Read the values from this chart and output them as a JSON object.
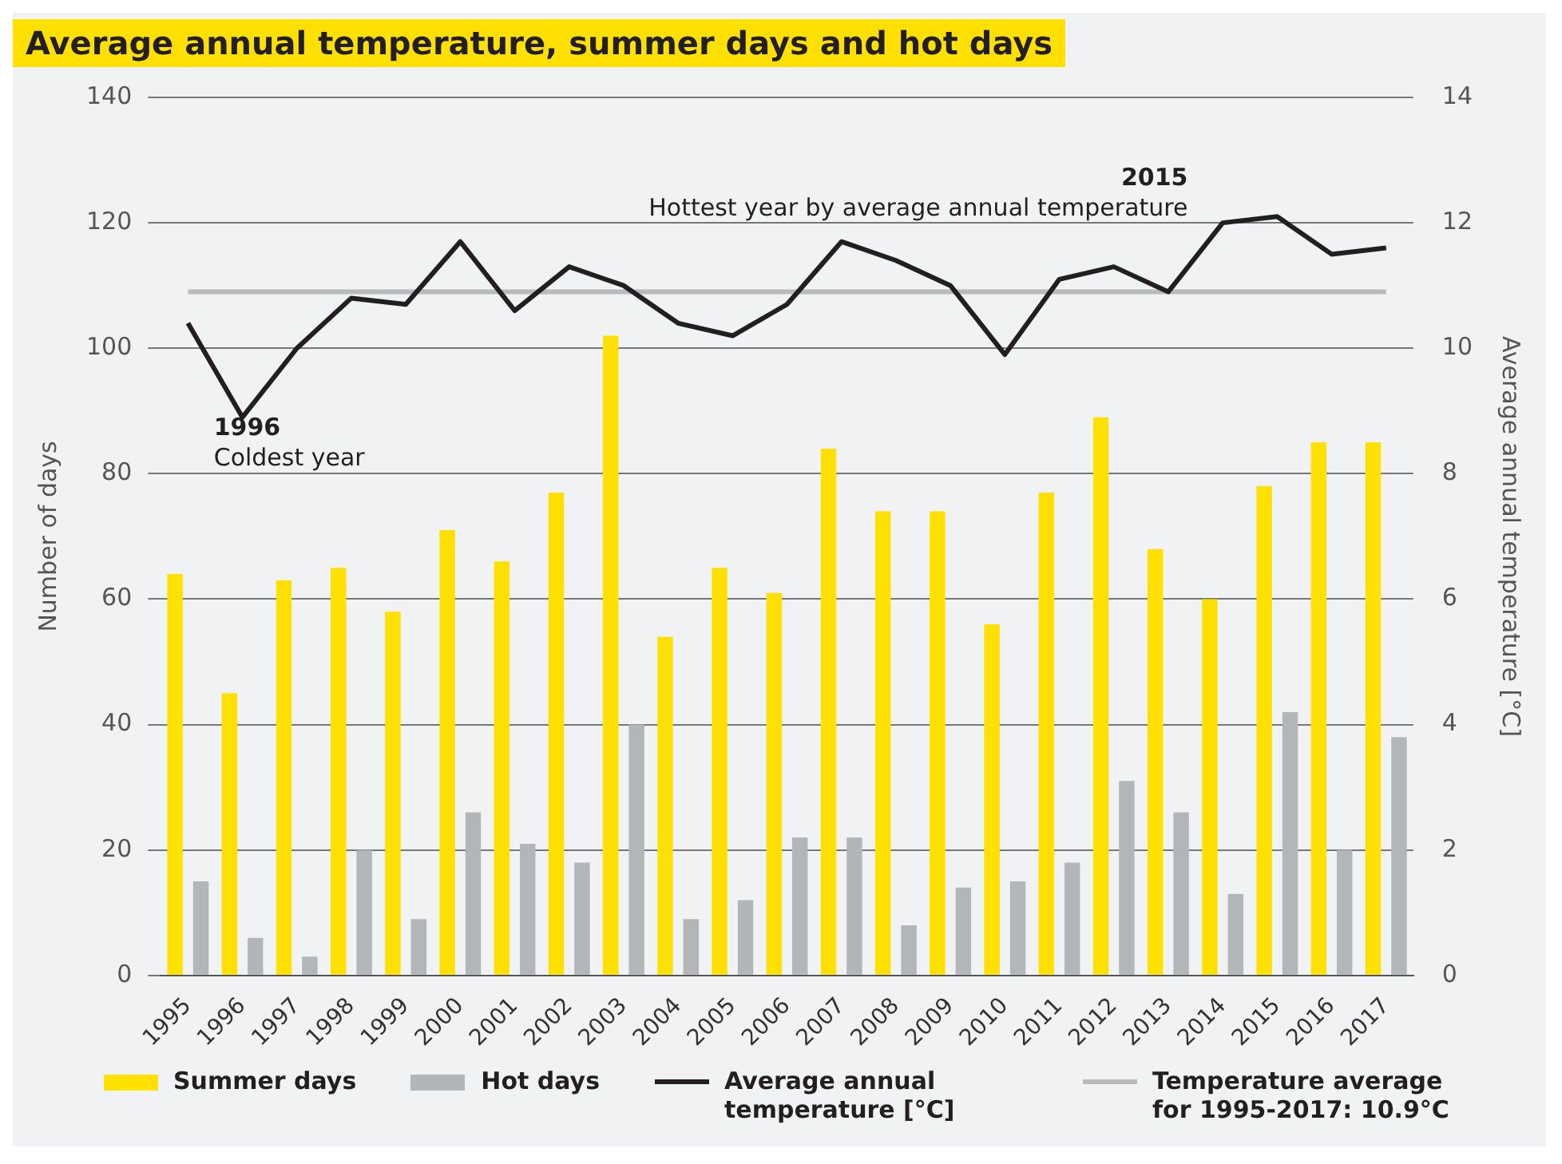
{
  "chart_data": {
    "type": "bar",
    "title": "Average annual temperature, summer days and hot days",
    "ylabel": "Number of days",
    "y2label": "Average annual temperature [°C]",
    "categories": [
      "1995",
      "1996",
      "1997",
      "1998",
      "1999",
      "2000",
      "2001",
      "2002",
      "2003",
      "2004",
      "2005",
      "2006",
      "2007",
      "2008",
      "2009",
      "2010",
      "2011",
      "2012",
      "2013",
      "2014",
      "2015",
      "2016",
      "2017"
    ],
    "series": [
      {
        "name": "Summer days",
        "color": "#ffe000",
        "values": [
          64,
          45,
          63,
          65,
          58,
          71,
          66,
          77,
          102,
          54,
          65,
          61,
          84,
          74,
          74,
          56,
          77,
          89,
          68,
          60,
          78,
          85,
          85
        ]
      },
      {
        "name": "Hot days",
        "color": "#b3b6b8",
        "values": [
          15,
          6,
          3,
          20,
          9,
          26,
          21,
          18,
          40,
          9,
          12,
          22,
          22,
          8,
          14,
          15,
          18,
          31,
          26,
          13,
          42,
          20,
          38
        ]
      },
      {
        "name": "Average annual temperature [°C]",
        "type": "line",
        "axis": "y2",
        "color": "#231f20",
        "values": [
          10.4,
          8.9,
          10.0,
          10.8,
          10.7,
          11.7,
          10.6,
          11.3,
          11.0,
          10.4,
          10.2,
          10.7,
          11.7,
          11.4,
          11.0,
          9.9,
          11.1,
          11.3,
          10.9,
          12.0,
          12.1,
          11.5,
          11.6
        ]
      },
      {
        "name": "Temperature average for 1995-2017: 10.9°C",
        "type": "line",
        "axis": "y2",
        "color": "#b8babc",
        "values": [
          10.9,
          10.9,
          10.9,
          10.9,
          10.9,
          10.9,
          10.9,
          10.9,
          10.9,
          10.9,
          10.9,
          10.9,
          10.9,
          10.9,
          10.9,
          10.9,
          10.9,
          10.9,
          10.9,
          10.9,
          10.9,
          10.9,
          10.9
        ]
      }
    ],
    "ylim": [
      0,
      140
    ],
    "yticks": [
      0,
      20,
      40,
      60,
      80,
      100,
      120,
      140
    ],
    "y2lim": [
      0,
      14
    ],
    "y2ticks": [
      0,
      2,
      4,
      6,
      8,
      10,
      12,
      14
    ],
    "annotations": [
      "1996\nColdest year",
      "2015\nHottest year by average annual temperature"
    ],
    "grid": "y",
    "legend": "bottom",
    "marker": "none",
    "line_style": "solid"
  }
}
